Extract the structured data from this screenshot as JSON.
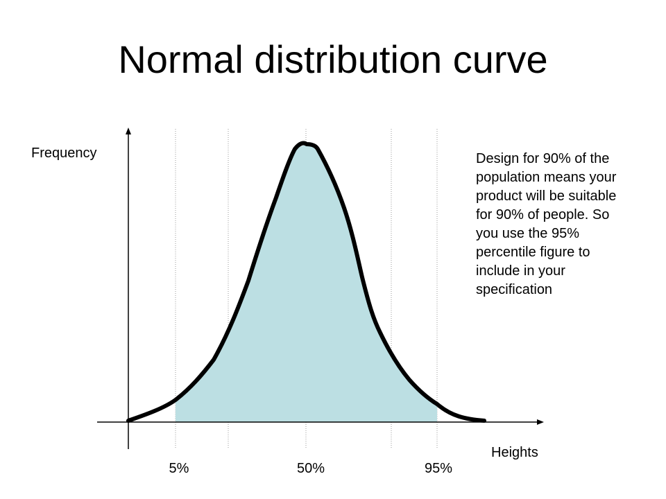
{
  "title": "Normal distribution curve",
  "y_axis_label": "Frequency",
  "x_axis_label": "Heights",
  "annotation": "Design for 90% of the population means your product will be suitable for 90% of people. So you use the 95% percentile figure to include in your specification",
  "percentile_labels": [
    "5%",
    "50%",
    "95%"
  ],
  "colors": {
    "fill": "#bcdfe3",
    "curve": "#000000",
    "gridline": "#999999"
  }
}
